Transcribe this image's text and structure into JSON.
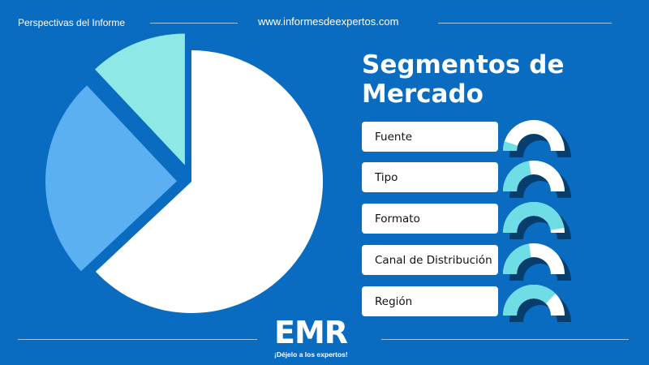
{
  "header": {
    "left": "Perspectivas del Informe",
    "url": "www.informesdeexpertos.com"
  },
  "title": "Segmentos de Mercado",
  "segments": [
    {
      "label": "Fuente",
      "fill": 0.1
    },
    {
      "label": "Tipo",
      "fill": 0.45
    },
    {
      "label": "Formato",
      "fill": 0.95
    },
    {
      "label": "Canal de Distribución",
      "fill": 0.45
    },
    {
      "label": "Región",
      "fill": 0.75
    }
  ],
  "logo": {
    "text": "EMR",
    "tagline": "¡Déjelo a los expertos!"
  },
  "colors": {
    "background": "#0a6cc0",
    "white": "#ffffff",
    "blue": "#5ab0f0",
    "cyan": "#8ee8e6",
    "gauge_fill": "#6fdde6",
    "gauge_shadow": "#083e6e"
  },
  "chart_data": {
    "type": "pie",
    "values": [
      63,
      25,
      12
    ],
    "slice_colors": [
      "#ffffff",
      "#5ab0f0",
      "#8ee8e6"
    ]
  }
}
